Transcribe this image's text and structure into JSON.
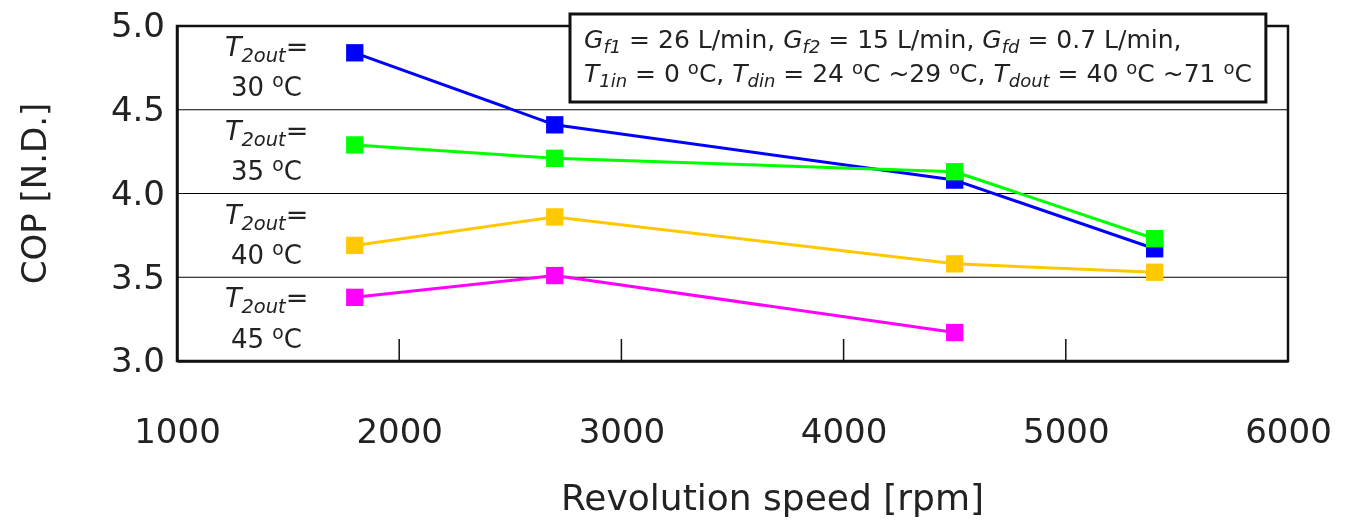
{
  "chart_data": {
    "type": "line",
    "xlabel": "Revolution speed [rpm]",
    "ylabel": "COP [N.D.]",
    "x": [
      1800,
      2700,
      4500,
      5400
    ],
    "series": [
      {
        "name": "T$_{2out}$= 30 $^{o}$C",
        "color": "#0000ff",
        "values": [
          4.84,
          4.41,
          4.08,
          3.67
        ]
      },
      {
        "name": "T$_{2out}$= 35 $^{o}$C",
        "color": "#00ff00",
        "values": [
          4.29,
          4.21,
          4.13,
          3.73
        ]
      },
      {
        "name": "T$_{2out}$= 40 $^{o}$C",
        "color": "#ffc800",
        "values": [
          3.69,
          3.86,
          3.58,
          3.53
        ]
      },
      {
        "name": "T$_{2out}$= 45 $^{o}$C",
        "color": "#ff00ff",
        "values": [
          3.38,
          3.51,
          3.17,
          null
        ]
      }
    ],
    "xlim": [
      1000,
      6000
    ],
    "xticks": [
      1000,
      2000,
      3000,
      4000,
      5000,
      6000
    ],
    "ylim": [
      3.0,
      5.0
    ],
    "yticks": [
      {
        "value": 3,
        "label": "3.0"
      },
      {
        "value": 3.5,
        "label": "3.5"
      },
      {
        "value": 4,
        "label": "4.0"
      },
      {
        "value": 4.5,
        "label": "4.5"
      },
      {
        "value": 5,
        "label": "5.0"
      }
    ],
    "grid": "y",
    "marker": "square",
    "line_style": "solid",
    "legend": false,
    "annotations": [
      "G$_{f1}$ = 26 L/min, G$_{f2}$ = 15 L/min, G$_{fd}$ = 0.7 L/min,",
      "T$_{1in}$ = 0 $^{o}$C, T$_{din}$ = 24 $^{o}$C ~29 $^{o}$C, T$_{dout}$ = 40 $^{o}$C ~71 $^{o}$C"
    ]
  }
}
